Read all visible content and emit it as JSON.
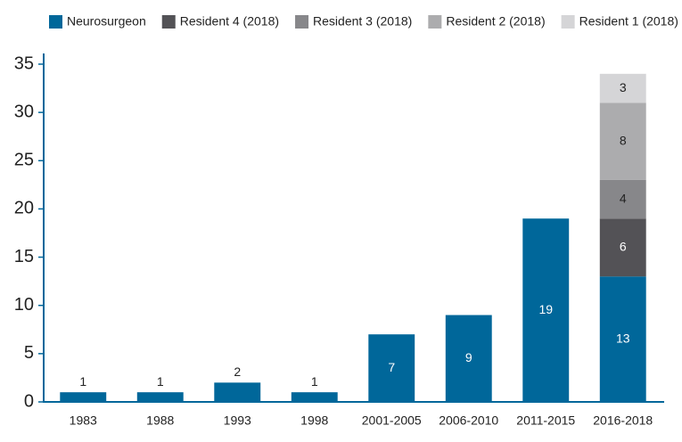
{
  "chart_data": {
    "type": "stacked_bar",
    "categories": [
      "1983",
      "1988",
      "1993",
      "1998",
      "2001-2005",
      "2006-2010",
      "2011-2015",
      "2016-2018"
    ],
    "series": [
      {
        "name": "Neurosurgeon",
        "color": "#00679a",
        "label_color": "#ffffff",
        "values": [
          1,
          1,
          2,
          1,
          7,
          9,
          19,
          13
        ]
      },
      {
        "name": "Resident 4 (2018)",
        "color": "#535256",
        "label_color": "#ffffff",
        "values": [
          null,
          null,
          null,
          null,
          null,
          null,
          null,
          6
        ]
      },
      {
        "name": "Resident 3 (2018)",
        "color": "#87878a",
        "label_color": "#222222",
        "values": [
          null,
          null,
          null,
          null,
          null,
          null,
          null,
          4
        ]
      },
      {
        "name": "Resident 2 (2018)",
        "color": "#acacae",
        "label_color": "#222222",
        "values": [
          null,
          null,
          null,
          null,
          null,
          null,
          null,
          8
        ]
      },
      {
        "name": "Resident 1 (2018)",
        "color": "#d5d5d7",
        "label_color": "#222222",
        "values": [
          null,
          null,
          null,
          null,
          null,
          null,
          null,
          3
        ]
      }
    ],
    "ylim": [
      0,
      35
    ],
    "yticks": [
      0,
      5,
      10,
      15,
      20,
      25,
      30,
      35
    ],
    "grid": false,
    "legend": "top"
  }
}
